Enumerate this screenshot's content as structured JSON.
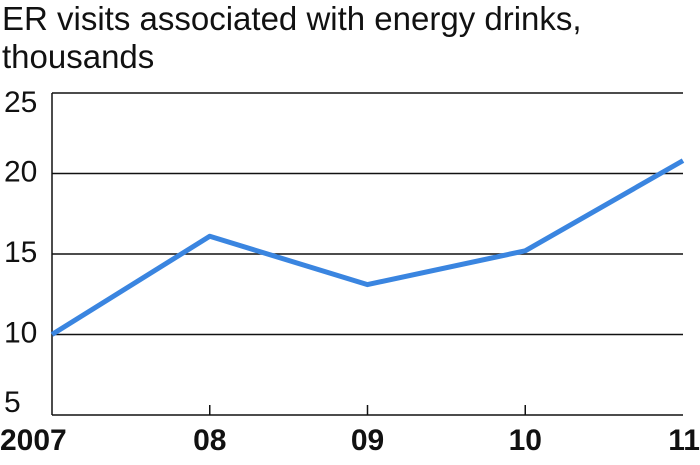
{
  "chart_data": {
    "type": "line",
    "title": "ER visits associated with energy drinks, thousands",
    "categories": [
      "2007",
      "08",
      "09",
      "10",
      "11"
    ],
    "series": [
      {
        "name": "ER visits",
        "color": "#3a85e0",
        "values": [
          10,
          16.1,
          13.1,
          15.2,
          20.8
        ]
      }
    ],
    "ylim": [
      5,
      25
    ],
    "yticks": [
      5,
      10,
      15,
      20,
      25
    ],
    "grid": true
  }
}
